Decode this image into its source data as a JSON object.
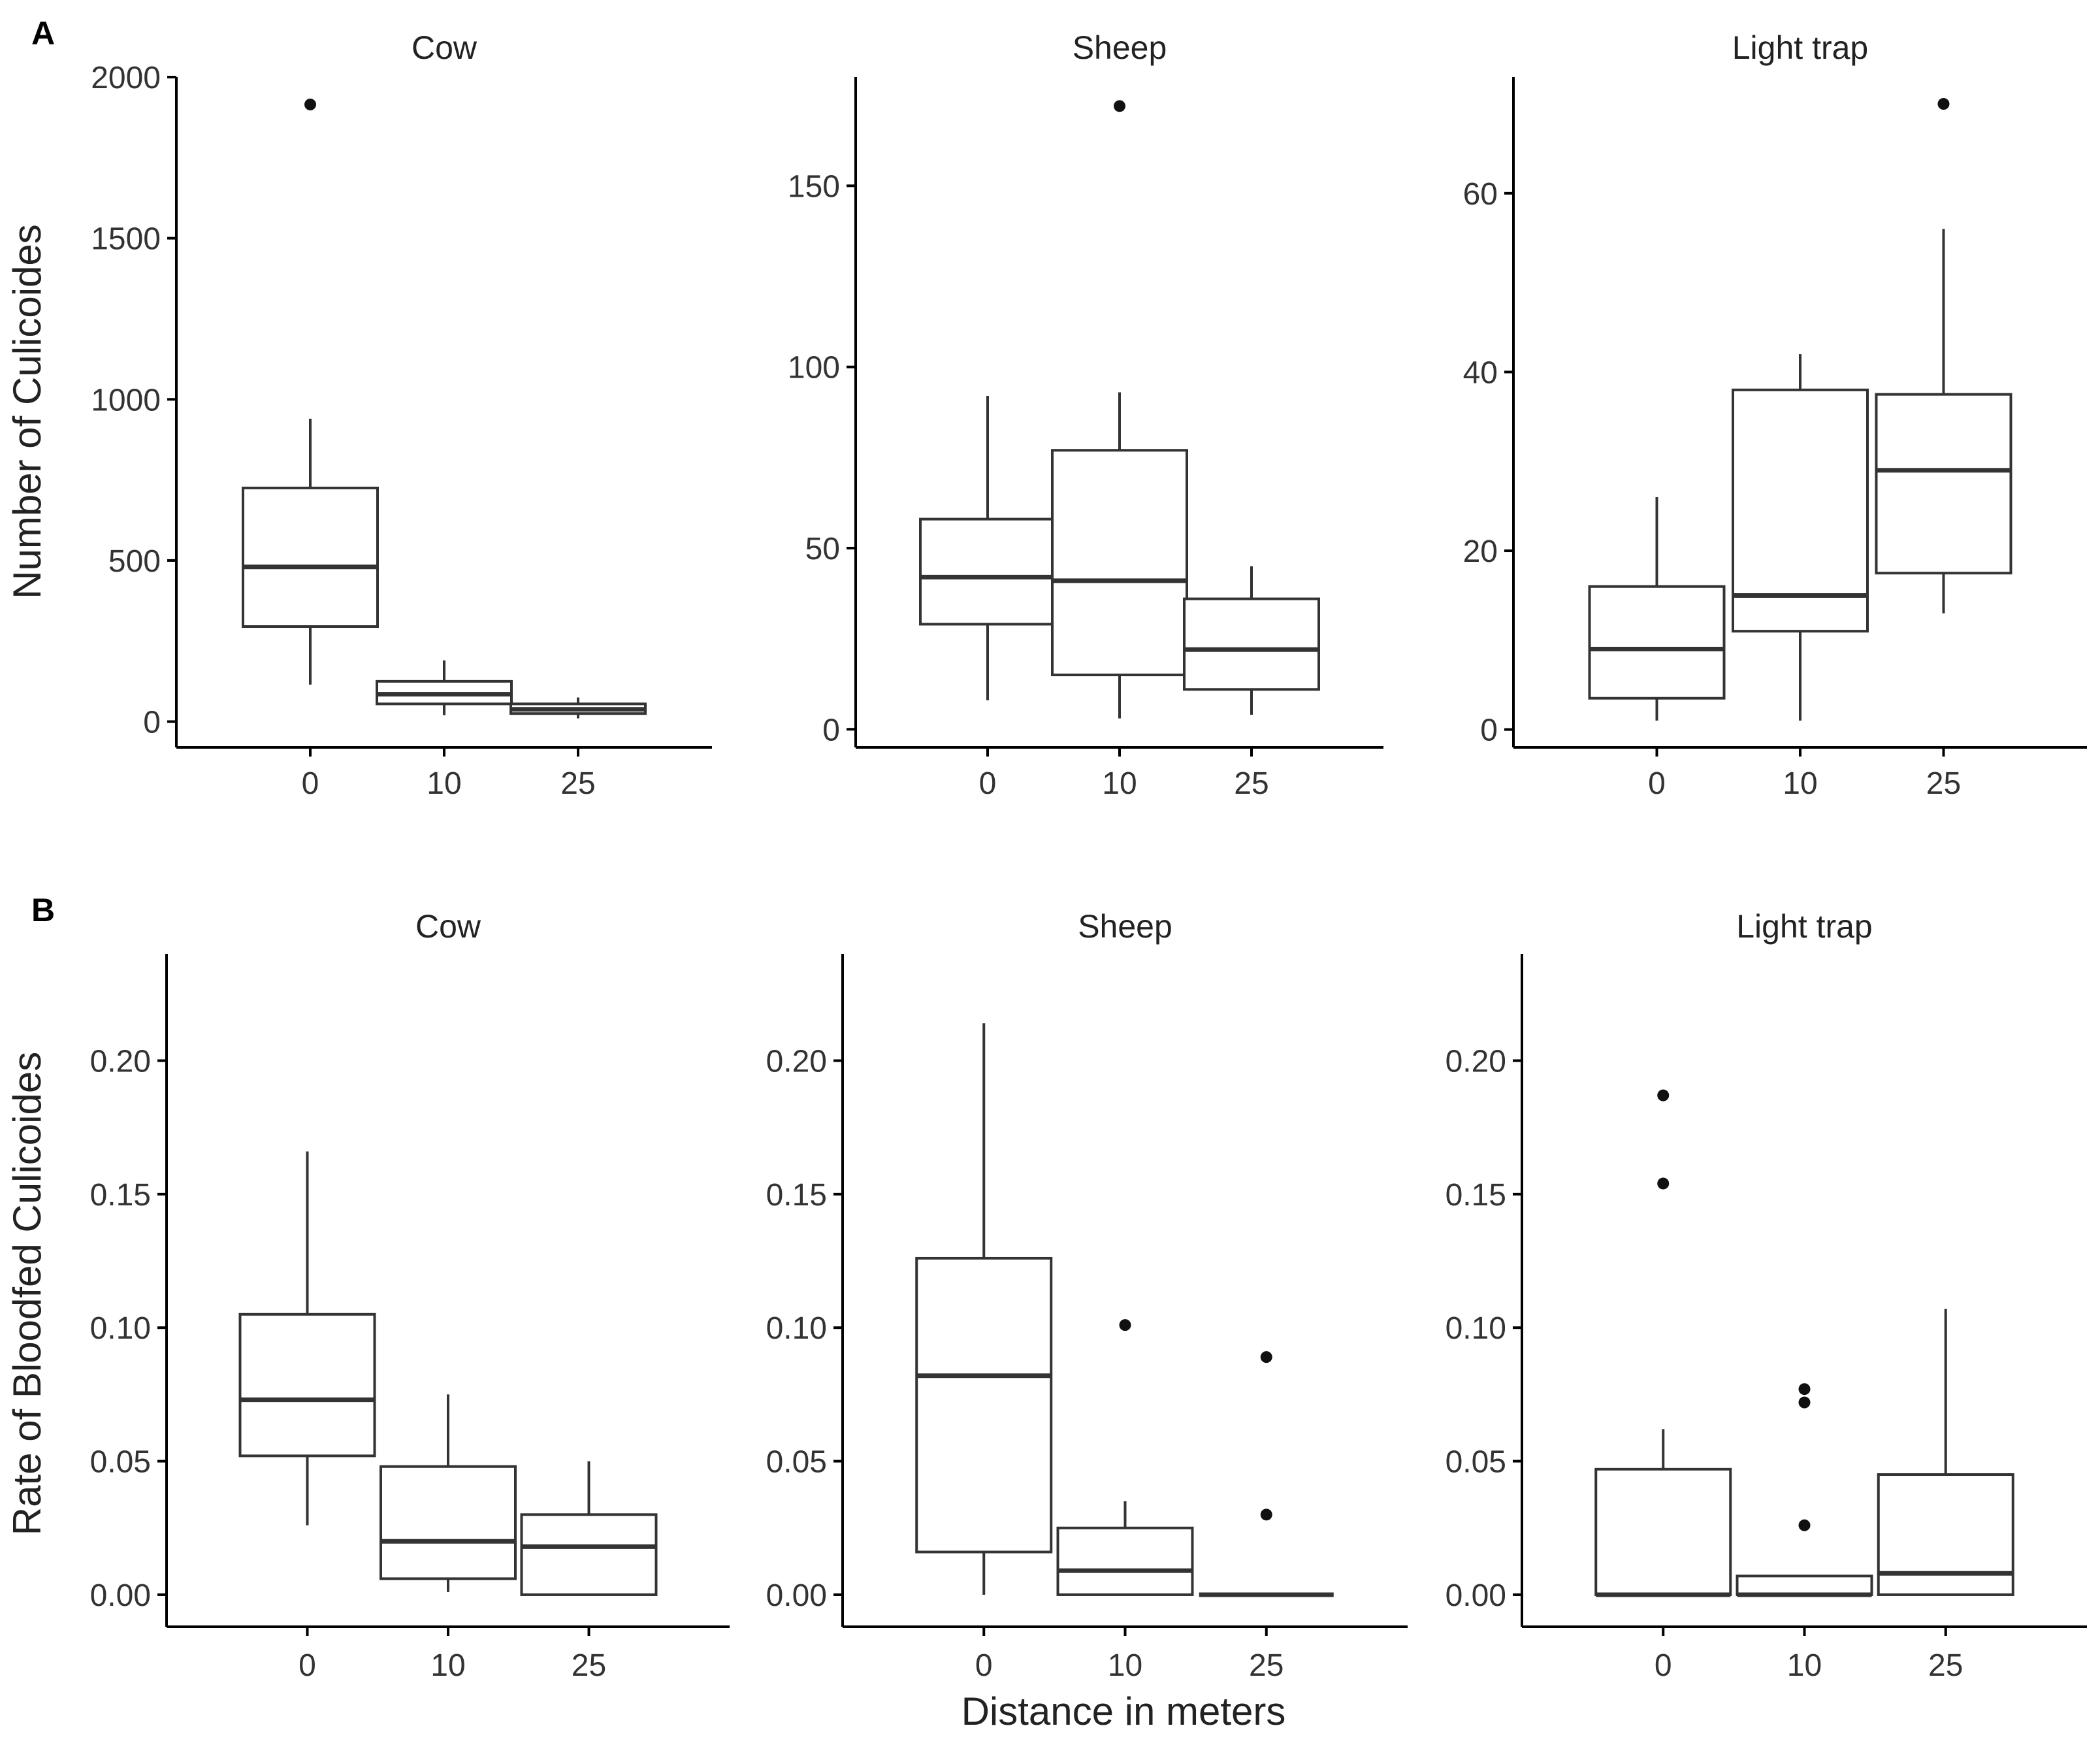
{
  "chart_data": [
    {
      "type": "boxplot",
      "panel": "A",
      "ylabel": "Number of Culicoides",
      "xlabel": "",
      "categories": [
        "0",
        "10",
        "25"
      ],
      "facets": [
        {
          "title": "Cow",
          "ylim": [
            -80,
            2000
          ],
          "yticks": [
            0,
            500,
            1000,
            1500,
            2000
          ],
          "boxes": [
            {
              "category": "0",
              "whisker_low": 115,
              "q1": 295,
              "median": 480,
              "q3": 725,
              "whisker_high": 940,
              "outliers": [
                1915
              ]
            },
            {
              "category": "10",
              "whisker_low": 20,
              "q1": 55,
              "median": 85,
              "q3": 125,
              "whisker_high": 190,
              "outliers": []
            },
            {
              "category": "25",
              "whisker_low": 10,
              "q1": 25,
              "median": 38,
              "q3": 55,
              "whisker_high": 75,
              "outliers": []
            }
          ]
        },
        {
          "title": "Sheep",
          "ylim": [
            -5,
            180
          ],
          "yticks": [
            0,
            50,
            100,
            150
          ],
          "boxes": [
            {
              "category": "0",
              "whisker_low": 8,
              "q1": 29,
              "median": 42,
              "q3": 58,
              "whisker_high": 92,
              "outliers": []
            },
            {
              "category": "10",
              "whisker_low": 3,
              "q1": 15,
              "median": 41,
              "q3": 77,
              "whisker_high": 93,
              "outliers": [
                172
              ]
            },
            {
              "category": "25",
              "whisker_low": 4,
              "q1": 11,
              "median": 22,
              "q3": 36,
              "whisker_high": 45,
              "outliers": []
            }
          ]
        },
        {
          "title": "Light trap",
          "ylim": [
            -2,
            73
          ],
          "yticks": [
            0,
            20,
            40,
            60
          ],
          "boxes": [
            {
              "category": "0",
              "whisker_low": 1,
              "q1": 3.5,
              "median": 9,
              "q3": 16,
              "whisker_high": 26,
              "outliers": []
            },
            {
              "category": "10",
              "whisker_low": 1,
              "q1": 11,
              "median": 15,
              "q3": 38,
              "whisker_high": 42,
              "outliers": []
            },
            {
              "category": "25",
              "whisker_low": 13,
              "q1": 17.5,
              "median": 29,
              "q3": 37.5,
              "whisker_high": 56,
              "outliers": [
                70
              ]
            }
          ]
        }
      ]
    },
    {
      "type": "boxplot",
      "panel": "B",
      "ylabel": "Rate of Bloodfed Culicoides",
      "xlabel": "Distance in meters",
      "categories": [
        "0",
        "10",
        "25"
      ],
      "facets": [
        {
          "title": "Cow",
          "ylim": [
            -0.012,
            0.24
          ],
          "yticks": [
            "0.00",
            "0.05",
            "0.10",
            "0.15",
            "0.20"
          ],
          "boxes": [
            {
              "category": "0",
              "whisker_low": 0.026,
              "q1": 0.052,
              "median": 0.073,
              "q3": 0.105,
              "whisker_high": 0.166,
              "outliers": []
            },
            {
              "category": "10",
              "whisker_low": 0.001,
              "q1": 0.006,
              "median": 0.02,
              "q3": 0.048,
              "whisker_high": 0.075,
              "outliers": []
            },
            {
              "category": "25",
              "whisker_low": 0.0,
              "q1": 0.0,
              "median": 0.018,
              "q3": 0.03,
              "whisker_high": 0.05,
              "outliers": []
            }
          ]
        },
        {
          "title": "Sheep",
          "ylim": [
            -0.012,
            0.24
          ],
          "yticks": [
            "0.00",
            "0.05",
            "0.10",
            "0.15",
            "0.20"
          ],
          "boxes": [
            {
              "category": "0",
              "whisker_low": 0.0,
              "q1": 0.016,
              "median": 0.082,
              "q3": 0.126,
              "whisker_high": 0.214,
              "outliers": []
            },
            {
              "category": "10",
              "whisker_low": 0.0,
              "q1": 0.0,
              "median": 0.009,
              "q3": 0.025,
              "whisker_high": 0.035,
              "outliers": [
                0.101
              ]
            },
            {
              "category": "25",
              "whisker_low": 0.0,
              "q1": 0.0,
              "median": 0.0,
              "q3": 0.0,
              "whisker_high": 0.0,
              "outliers": [
                0.089,
                0.03
              ]
            }
          ]
        },
        {
          "title": "Light trap",
          "ylim": [
            -0.012,
            0.24
          ],
          "yticks": [
            "0.00",
            "0.05",
            "0.10",
            "0.15",
            "0.20"
          ],
          "boxes": [
            {
              "category": "0",
              "whisker_low": 0.0,
              "q1": 0.0,
              "median": 0.0,
              "q3": 0.047,
              "whisker_high": 0.062,
              "outliers": [
                0.187,
                0.154
              ]
            },
            {
              "category": "10",
              "whisker_low": 0.0,
              "q1": 0.0,
              "median": 0.0,
              "q3": 0.007,
              "whisker_high": 0.007,
              "outliers": [
                0.077,
                0.072,
                0.026
              ]
            },
            {
              "category": "25",
              "whisker_low": 0.0,
              "q1": 0.0,
              "median": 0.008,
              "q3": 0.045,
              "whisker_high": 0.107,
              "outliers": []
            }
          ]
        }
      ]
    }
  ]
}
